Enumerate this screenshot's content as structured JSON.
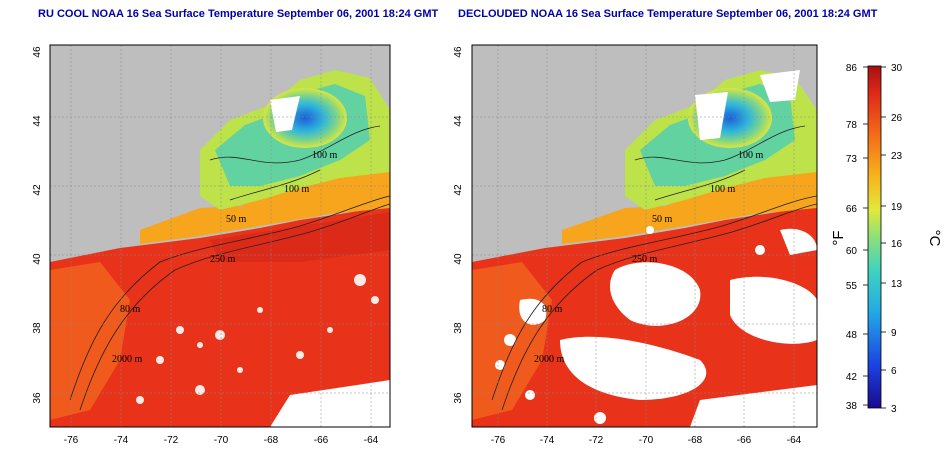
{
  "panels": [
    {
      "id": "left",
      "title": "RU COOL NOAA 16 Sea Surface Temperature September 06, 2001 18:24 GMT",
      "depth_labels": [
        "100 m",
        "100 m",
        "50 m",
        "250 m",
        "80 m",
        "2000 m"
      ]
    },
    {
      "id": "right",
      "title": "DECLOUDED NOAA 16 Sea Surface Temperature September 06, 2001 18:24 GMT",
      "depth_labels": [
        "100 m",
        "100 m",
        "50 m",
        "250 m",
        "80 m",
        "2000 m"
      ]
    }
  ],
  "axes": {
    "lon_ticks": [
      "-76",
      "-74",
      "-72",
      "-70",
      "-68",
      "-66",
      "-64"
    ],
    "lat_ticks": [
      "36",
      "38",
      "40",
      "42",
      "44",
      "46"
    ]
  },
  "colorbar": {
    "fahrenheit_label": "°F",
    "celsius_label": "°C",
    "fahrenheit_ticks": [
      "86",
      "78",
      "73",
      "66",
      "60",
      "55",
      "48",
      "42",
      "38"
    ],
    "celsius_ticks": [
      "30",
      "26",
      "23",
      "19",
      "16",
      "13",
      "9",
      "6",
      "3"
    ]
  },
  "colors": {
    "land": "#bebebe",
    "cloud": "#ffffff",
    "warm": "#e8321a",
    "cool": "#2a7ad8",
    "title": "#0000aa"
  }
}
